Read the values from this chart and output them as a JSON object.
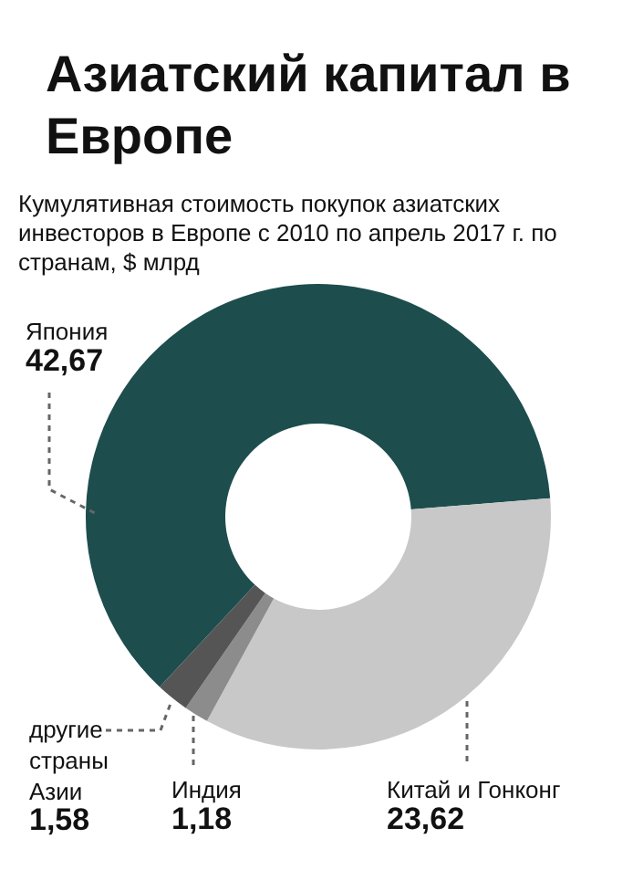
{
  "chart_data": {
    "type": "donut",
    "title": "Азиатский капитал в Европе",
    "subtitle": "Кумулятивная стоимость покупок азиатских инвесторов в Европе с 2010 по апрель 2017 г. по странам, $ млрд",
    "categories": [
      "Япония",
      "Китай и Гонконг",
      "Индия",
      "другие страны Азии"
    ],
    "values": [
      42.67,
      23.62,
      1.18,
      1.58
    ],
    "value_labels": [
      "42,67",
      "23,62",
      "1,18",
      "1,58"
    ],
    "colors": [
      "#1d4d4d",
      "#c8c8c8",
      "#8c8c8c",
      "#555555"
    ],
    "legend": false
  }
}
